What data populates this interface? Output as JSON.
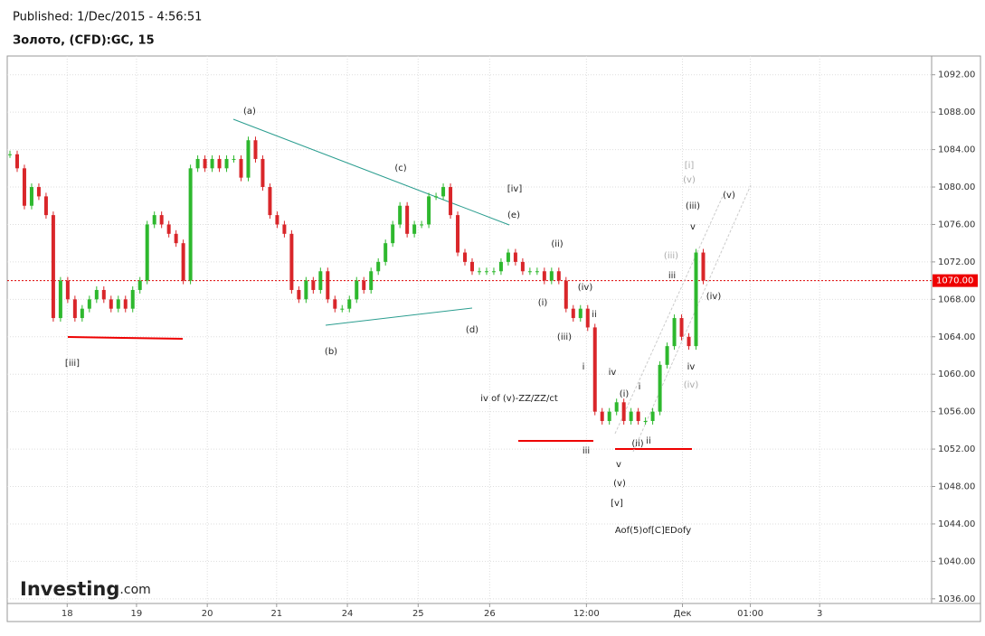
{
  "header": {
    "published": "Published: 1/Dec/2015 - 4:56:51",
    "title": "Золото, (CFD):GC, 15",
    "logo": "Investing",
    "logo_suffix": ".com"
  },
  "chart_data": {
    "type": "candlestick",
    "up_color": "#2eb82e",
    "down_color": "#d9262a",
    "values": [
      1083.5,
      1082,
      1078,
      1080,
      1079,
      1077,
      1066,
      1070,
      1068,
      1066,
      1067,
      1068,
      1069,
      1068,
      1067,
      1068,
      1067,
      1069,
      1070,
      1076,
      1077,
      1076,
      1075,
      1074,
      1070,
      1082,
      1083,
      1082,
      1083,
      1082,
      1083,
      1083,
      1081,
      1085,
      1083,
      1080,
      1077,
      1076,
      1075,
      1069,
      1068,
      1070,
      1069,
      1071,
      1068,
      1067,
      1067,
      1068,
      1070,
      1069,
      1071,
      1072,
      1074,
      1076,
      1078,
      1075,
      1076,
      1076,
      1079,
      1079,
      1080,
      1077,
      1073,
      1072,
      1071,
      1071,
      1071,
      1071,
      1072,
      1073,
      1072,
      1071,
      1071,
      1071,
      1070,
      1071,
      1070,
      1067,
      1066,
      1067,
      1065,
      1056,
      1055,
      1056,
      1057,
      1055,
      1056,
      1055,
      1055,
      1056,
      1061,
      1063,
      1066,
      1064,
      1063,
      1073,
      1070
    ],
    "xlim": [
      0,
      128
    ],
    "xticks": [
      {
        "value": 8.3,
        "label": "18"
      },
      {
        "value": 17.9,
        "label": "19"
      },
      {
        "value": 27.7,
        "label": "20"
      },
      {
        "value": 37.3,
        "label": "21"
      },
      {
        "value": 47.1,
        "label": "24"
      },
      {
        "value": 56.9,
        "label": "25"
      },
      {
        "value": 66.8,
        "label": "26"
      },
      {
        "value": 80.2,
        "label": "12:00"
      },
      {
        "value": 93.5,
        "label": "Дек"
      },
      {
        "value": 102.9,
        "label": "01:00"
      },
      {
        "value": 112.5,
        "label": "3"
      }
    ],
    "ylim": [
      1035.5,
      1094
    ],
    "yticks": [
      {
        "value": 1036,
        "label": "1036.00"
      },
      {
        "value": 1040,
        "label": "1040.00"
      },
      {
        "value": 1044,
        "label": "1044.00"
      },
      {
        "value": 1048,
        "label": "1048.00"
      },
      {
        "value": 1052,
        "label": "1052.00"
      },
      {
        "value": 1056,
        "label": "1056.00"
      },
      {
        "value": 1060,
        "label": "1060.00"
      },
      {
        "value": 1064,
        "label": "1064.00"
      },
      {
        "value": 1068,
        "label": "1068.00"
      },
      {
        "value": 1072,
        "label": "1072.00"
      },
      {
        "value": 1076,
        "label": "1076.00"
      },
      {
        "value": 1080,
        "label": "1080.00"
      },
      {
        "value": 1084,
        "label": "1084.00"
      },
      {
        "value": 1088,
        "label": "1088.00"
      },
      {
        "value": 1092,
        "label": "1092.00"
      }
    ],
    "grid": true,
    "last_price": {
      "value": 1070,
      "label": "1070.00"
    },
    "annotations": [
      "(a)",
      "(c)",
      "[iv]",
      "(e)",
      "(ii)",
      "(iv)",
      "(i)",
      "ii",
      "(iii)",
      "i",
      "iv",
      "(i)",
      "i",
      "iii",
      "(ii)",
      "ii",
      "v",
      "(v)",
      "[v]",
      "Aof(5)of[C]EDofy",
      "iv of (v)-ZZ/ZZ/ct",
      "[iii]",
      "(b)",
      "(d)",
      "[i]",
      "(v)",
      "(iii)",
      "v",
      "(v)",
      "(iii)",
      "iii",
      "(iv)",
      "iv",
      "(iv)"
    ]
  }
}
